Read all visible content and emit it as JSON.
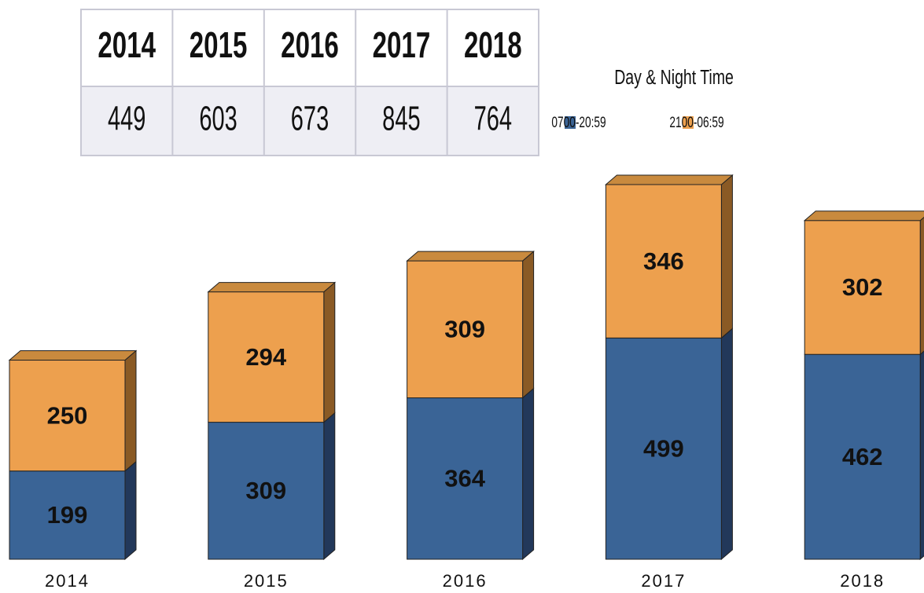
{
  "table": {
    "header": [
      "2014",
      "2015",
      "2016",
      "2017",
      "2018"
    ],
    "rows": [
      [
        449,
        603,
        673,
        845,
        764
      ]
    ]
  },
  "chart_data": {
    "type": "bar",
    "stacked": true,
    "legend_title": "Day & Night Time",
    "categories": [
      "2014",
      "2015",
      "2016",
      "2017",
      "2018"
    ],
    "series": [
      {
        "name": "0700-20:59",
        "color": "#3a6496",
        "values": [
          199,
          309,
          364,
          499,
          462
        ]
      },
      {
        "name": "2100-06:59",
        "color": "#eda04e",
        "values": [
          250,
          294,
          309,
          346,
          302
        ]
      }
    ]
  }
}
